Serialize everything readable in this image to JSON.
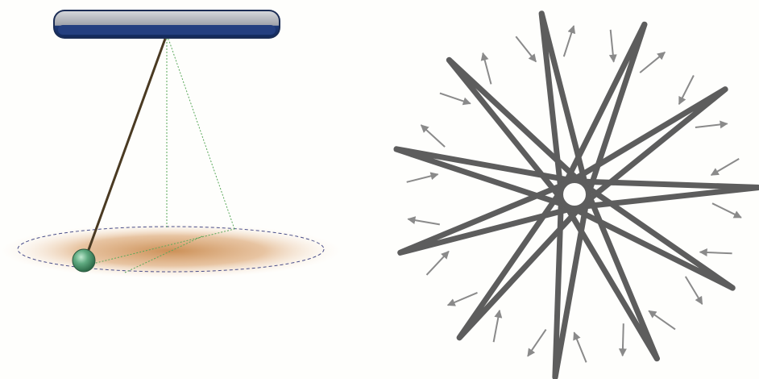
{
  "figure": {
    "left_panel": {
      "subject": "pendulum",
      "parts": [
        "support-bar",
        "string",
        "bob",
        "floor-ellipse",
        "projection-lines"
      ],
      "colors": {
        "bar_top": "#b8bcc4",
        "bar_bottom": "#1e3a78",
        "string": "#4a3a22",
        "bob": "#4f9a72",
        "floor": "#d9a36a",
        "guide_lines": "#5aa85a",
        "ellipse_outline": "#4a4f8a"
      }
    },
    "right_panel": {
      "subject": "rosette-path",
      "petal_count": 11,
      "arrow_count": 22,
      "colors": {
        "path": "#5d5d5d",
        "arrows": "#8a8a8a"
      }
    }
  }
}
